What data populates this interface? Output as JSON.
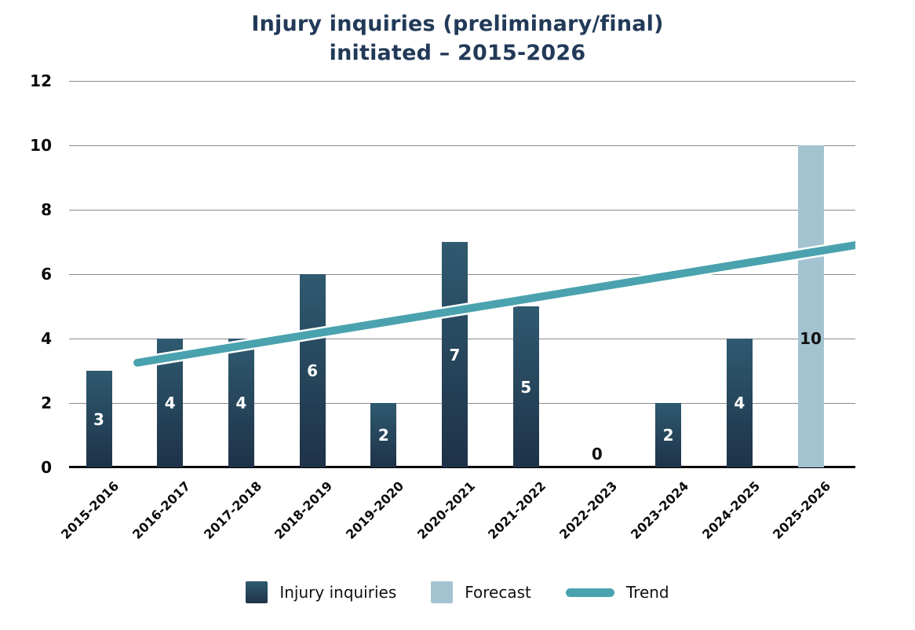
{
  "colors": {
    "title": "#223a58",
    "bar_top": "#2f5a70",
    "bar_bottom": "#1e3248",
    "forecast": "#a4c3d1",
    "trend": "#4aa2ae",
    "trend_halo": "#ffffff",
    "grid": "#8c8c8c",
    "axis": "#000000",
    "bar_label": "#ffffff",
    "dark_label": "#111111",
    "tick_label": "#0a0a0a"
  },
  "chart_data": {
    "type": "bar",
    "title_lines": [
      "Injury inquiries (preliminary/final)",
      "initiated – 2015-2026"
    ],
    "categories": [
      "2015-2016",
      "2016-2017",
      "2017-2018",
      "2018-2019",
      "2019-2020",
      "2020-2021",
      "2021-2022",
      "2022-2023",
      "2023-2024",
      "2024-2025",
      "2025-2026"
    ],
    "series": [
      {
        "name": "Injury inquiries",
        "type": "bar",
        "values": [
          3,
          4,
          4,
          6,
          2,
          7,
          5,
          0,
          2,
          4,
          null
        ]
      },
      {
        "name": "Forecast",
        "type": "bar",
        "values": [
          null,
          null,
          null,
          null,
          null,
          null,
          null,
          null,
          null,
          null,
          10
        ]
      },
      {
        "name": "Trend",
        "type": "line",
        "points": [
          {
            "x_frac": 0.085,
            "value": 3.25
          },
          {
            "x_frac": 1.0,
            "value": 6.9
          }
        ]
      }
    ],
    "ylim": [
      0,
      12
    ],
    "yticks": [
      0,
      2,
      4,
      6,
      8,
      10,
      12
    ],
    "grid": true,
    "value_labels": true,
    "legend_position": "bottom"
  }
}
